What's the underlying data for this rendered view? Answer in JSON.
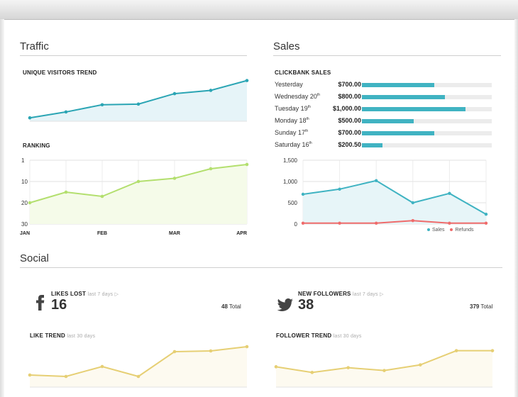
{
  "traffic": {
    "title": "Traffic",
    "visitors": {
      "title": "UNIQUE VISITORS TREND",
      "chart_data": {
        "type": "area",
        "values": [
          3,
          12,
          23,
          24,
          40,
          45,
          60
        ],
        "ylim": [
          0,
          65
        ],
        "color": "#2ba5b4",
        "fill": "#e6f4f8"
      }
    },
    "ranking": {
      "title": "RANKING",
      "chart_data": {
        "type": "area",
        "x": [
          0,
          1,
          2,
          3,
          4,
          5,
          6
        ],
        "values": [
          20,
          15,
          17,
          10,
          8.5,
          4,
          2
        ],
        "categories": [
          "JAN",
          "FEB",
          "MAR",
          "APR"
        ],
        "category_positions": [
          0,
          2,
          4,
          6
        ],
        "yticks": [
          "1",
          "10",
          "20",
          "30"
        ],
        "ytick_values": [
          0,
          10,
          20,
          30
        ],
        "ylim": [
          0,
          30
        ],
        "color": "#b3df6e",
        "fill": "#f5fbe9"
      }
    }
  },
  "sales": {
    "title": "Sales",
    "clickbank": {
      "title": "CLICKBANK SALES",
      "rows": [
        {
          "day": "Yesterday",
          "sup": "",
          "amount": "$700.00",
          "value": 700
        },
        {
          "day": "Wednesday 20",
          "sup": "th",
          "amount": "$800.00",
          "value": 800
        },
        {
          "day": "Tuesday 19",
          "sup": "th",
          "amount": "$1,000.00",
          "value": 1000
        },
        {
          "day": "Monday 18",
          "sup": "th",
          "amount": "$500.00",
          "value": 500
        },
        {
          "day": "Sunday 17",
          "sup": "th",
          "amount": "$700.00",
          "value": 700
        },
        {
          "day": "Saturday 16",
          "sup": "th",
          "amount": "$200.50",
          "value": 200.5
        }
      ],
      "max": 1250,
      "color": "#40b3c2"
    },
    "chart": {
      "chart_data": {
        "type": "area",
        "yticks": [
          "0",
          "500",
          "1,000",
          "1,500"
        ],
        "ytick_values": [
          0,
          500,
          1000,
          1500
        ],
        "ylim": [
          0,
          1500
        ],
        "series": [
          {
            "name": "Sales",
            "values": [
              700,
              820,
              1020,
              500,
              720,
              230
            ],
            "color": "#3fb3c2"
          },
          {
            "name": "Refunds",
            "values": [
              20,
              20,
              20,
              80,
              20,
              20
            ],
            "color": "#ef6b6b"
          }
        ],
        "legend": "bottom-right"
      }
    }
  },
  "social": {
    "title": "Social",
    "likes": {
      "title": "LIKES LOST",
      "period": "last 7 days",
      "count": "16",
      "total": "48",
      "total_label": "Total",
      "icon": "facebook-icon"
    },
    "followers": {
      "title": "NEW FOLLOWERS",
      "period": "last 7 days",
      "count": "38",
      "total": "379",
      "total_label": "Total",
      "icon": "twitter-bird-icon"
    },
    "like_trend": {
      "title": "LIKE TREND",
      "period": "last 30 days",
      "chart_data": {
        "type": "area",
        "values": [
          5,
          3,
          17,
          3,
          38,
          39,
          45
        ],
        "ylim": [
          -10,
          50
        ],
        "color": "#e6cf74",
        "fill": "#fdfaf0"
      }
    },
    "follower_trend": {
      "title": "FOLLOWER TREND",
      "period": "last 30 days",
      "chart_data": {
        "type": "area",
        "values": [
          10,
          4,
          9,
          6,
          12,
          27,
          27
        ],
        "ylim": [
          -10,
          35
        ],
        "color": "#e6cf74",
        "fill": "#fdfaf0"
      }
    }
  }
}
